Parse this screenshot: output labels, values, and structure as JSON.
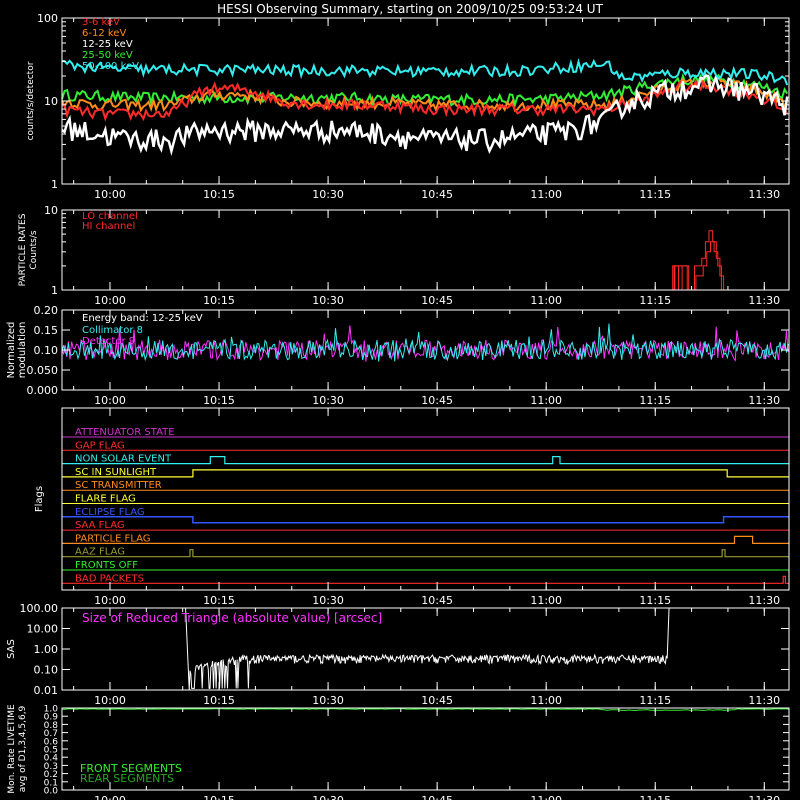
{
  "title": "HESSI Observing Summary, starting on 2009/10/25 09:53:24 UT",
  "time_ticks": [
    "10:00",
    "10:15",
    "10:30",
    "10:45",
    "11:00",
    "11:15",
    "11:30"
  ],
  "panels": {
    "rates": {
      "ylabel": "counts/s/detector",
      "ytick_labels": [
        "1",
        "10",
        "100"
      ],
      "legend": [
        {
          "label": "3-6 keV",
          "color": "#ff2a2a"
        },
        {
          "label": "6-12 keV",
          "color": "#ff8c1a"
        },
        {
          "label": "12-25 keV",
          "color": "#ffffff"
        },
        {
          "label": "25-50 keV",
          "color": "#33ee33"
        },
        {
          "label": "50-100 keV",
          "color": "#33eeee"
        }
      ]
    },
    "particle": {
      "ylabel_line1": "PARTICLE RATES",
      "ylabel_line2": "Counts/s",
      "ytick_labels": [
        "1",
        "10"
      ],
      "legend": [
        {
          "label": "LO channel",
          "color": "#ff2a2a"
        },
        {
          "label": "HI channel",
          "color": "#ff2a2a"
        }
      ]
    },
    "modulation": {
      "ylabel_line1": "Normalized",
      "ylabel_line2": "modulation",
      "ytick_labels": [
        "0.000",
        "0.050",
        "0.10",
        "0.15",
        "0.20"
      ],
      "band_label": "Energy band: 12-25 keV",
      "legend": [
        {
          "label": "Collimator 8",
          "color": "#33eeee"
        },
        {
          "label": "Detector 9",
          "color": "#ff33ff"
        }
      ]
    },
    "flags": {
      "ylabel": "Flags",
      "items": [
        {
          "label": "ATTENUATOR STATE",
          "color": "#cc33cc"
        },
        {
          "label": "GAP FLAG",
          "color": "#ff2a2a"
        },
        {
          "label": "NON SOLAR EVENT",
          "color": "#33eeee"
        },
        {
          "label": "SC IN SUNLIGHT",
          "color": "#ffff33"
        },
        {
          "label": "SC TRANSMITTER",
          "color": "#ff8c1a"
        },
        {
          "label": "FLARE FLAG",
          "color": "#ffff33"
        },
        {
          "label": "ECLIPSE FLAG",
          "color": "#3355ff"
        },
        {
          "label": "SAA FLAG",
          "color": "#ff2a2a"
        },
        {
          "label": "PARTICLE FLAG",
          "color": "#ff8c1a"
        },
        {
          "label": "AAZ FLAG",
          "color": "#999933"
        },
        {
          "label": "FRONTS OFF",
          "color": "#33ee33"
        },
        {
          "label": "BAD PACKETS",
          "color": "#ff2a2a"
        }
      ]
    },
    "sas": {
      "ylabel": "SAS",
      "ytick_labels": [
        "0.01",
        "0.10",
        "1.00",
        "10.00",
        "100.00"
      ],
      "annotation": "Size of Reduced Triangle (absolute value) [arcsec]",
      "annotation_color": "#ff33ff"
    },
    "livetime": {
      "ylabel_line1": "Mon. Rate LIVETIME",
      "ylabel_line2": "avg of D1,3,4,5,6,9",
      "ytick_labels": [
        "0.0",
        "0.1",
        "0.2",
        "0.3",
        "0.4",
        "0.5",
        "0.6",
        "0.7",
        "0.8",
        "0.9",
        "1.0"
      ],
      "legend": [
        {
          "label": "FRONT SEGMENTS",
          "color": "#33ee33"
        },
        {
          "label": "REAR SEGMENTS",
          "color": "#22aa22"
        }
      ]
    }
  },
  "chart_data": [
    {
      "type": "line",
      "title": "HESSI Observing Summary, starting on 2009/10/25 09:53:24 UT",
      "ylabel": "counts/s/detector",
      "yscale": "log",
      "ylim": [
        1,
        100
      ],
      "x_unit": "minutes after 09:53:24 UT",
      "xlim": [
        0,
        100
      ],
      "x": [
        0,
        5,
        10,
        15,
        20,
        25,
        30,
        35,
        40,
        45,
        50,
        55,
        60,
        65,
        70,
        75,
        77,
        80,
        85,
        90,
        95,
        100
      ],
      "series": [
        {
          "name": "3-6 keV",
          "values": [
            8,
            7,
            7,
            7,
            14,
            14,
            10,
            9,
            9,
            9,
            8,
            8,
            8,
            8,
            8,
            8,
            9,
            10,
            15,
            15,
            12,
            7
          ]
        },
        {
          "name": "6-12 keV",
          "values": [
            10,
            9,
            9,
            9,
            12,
            12,
            10,
            9.5,
            9.5,
            9.5,
            9,
            9,
            9,
            9,
            9,
            9,
            10,
            12,
            16,
            17,
            14,
            9
          ]
        },
        {
          "name": "12-25 keV",
          "values": [
            5,
            4,
            3.5,
            3.5,
            4.5,
            4.5,
            4.5,
            4.5,
            4.5,
            4,
            3.5,
            3.5,
            3.5,
            4,
            4.5,
            6,
            9,
            11,
            15,
            16,
            13,
            9
          ]
        },
        {
          "name": "25-50 keV",
          "values": [
            12,
            11.5,
            11,
            11,
            11,
            11,
            11,
            11,
            11,
            10.5,
            10.5,
            10.5,
            10.5,
            10.5,
            11,
            12,
            13,
            15,
            18,
            18,
            16,
            12
          ]
        },
        {
          "name": "50-100 keV",
          "values": [
            28,
            25,
            24,
            24,
            24,
            24,
            23.5,
            23.5,
            23.5,
            23,
            23,
            23,
            23,
            24,
            26,
            28,
            19,
            20,
            22,
            22,
            21,
            18
          ]
        }
      ]
    },
    {
      "type": "line",
      "ylabel": "PARTICLE RATES Counts/s",
      "yscale": "log",
      "ylim": [
        1,
        10
      ],
      "x": [
        83,
        84,
        86,
        87,
        88,
        88.5,
        89,
        89.5,
        90,
        90.5,
        91
      ],
      "series": [
        {
          "name": "LO channel",
          "values": [
            1,
            2,
            1,
            2,
            2.5,
            4,
            5.5,
            4,
            2.5,
            1.5,
            1
          ]
        },
        {
          "name": "HI channel",
          "values": [
            1,
            2,
            1,
            1.5,
            2,
            3,
            4,
            3,
            2,
            1,
            1
          ]
        }
      ]
    },
    {
      "type": "line",
      "ylabel": "Normalized modulation",
      "ylim": [
        0,
        0.2
      ],
      "series": [
        {
          "name": "Collimator 8",
          "values": [
            0.1,
            0.1,
            0.1,
            0.1,
            0.1,
            0.1,
            0.1,
            0.1,
            0.1,
            0.1
          ]
        },
        {
          "name": "Detector 9",
          "values": [
            0.1,
            0.1,
            0.1,
            0.1,
            0.1,
            0.1,
            0.1,
            0.1,
            0.1,
            0.1
          ]
        }
      ]
    },
    {
      "type": "line",
      "ylabel": "SAS",
      "yscale": "log",
      "ylim": [
        0.01,
        100
      ],
      "x": [
        17,
        17.5,
        20,
        25,
        40,
        60,
        83,
        83.5
      ],
      "series": [
        {
          "name": "Size of Reduced Triangle (absolute value) [arcsec]",
          "values": [
            100,
            0.05,
            0.2,
            0.3,
            0.35,
            0.35,
            0.4,
            100
          ]
        }
      ]
    }
  ]
}
